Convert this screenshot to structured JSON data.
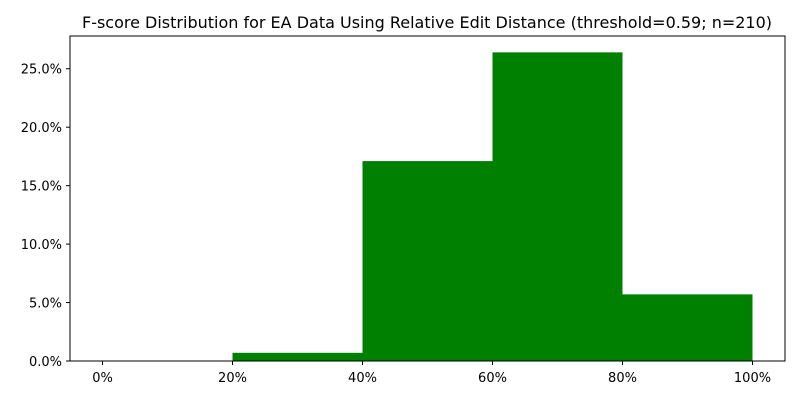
{
  "chart_data": {
    "type": "bar",
    "title": "F-score Distribution for EA Data Using Relative Edit Distance (threshold=0.59; n=210)",
    "xlabel": "",
    "ylabel": "",
    "bin_edges": [
      0,
      20,
      40,
      60,
      80,
      100
    ],
    "values": [
      0.0,
      0.7,
      17.1,
      26.4,
      5.7
    ],
    "xlim": [
      -5,
      105
    ],
    "ylim": [
      0,
      27.8
    ],
    "x_ticks": [
      0,
      20,
      40,
      60,
      80,
      100
    ],
    "x_tick_labels": [
      "0%",
      "20%",
      "40%",
      "60%",
      "80%",
      "100%"
    ],
    "y_ticks": [
      0,
      5,
      10,
      15,
      20,
      25
    ],
    "y_tick_labels": [
      "0.0%",
      "5.0%",
      "10.0%",
      "15.0%",
      "20.0%",
      "25.0%"
    ],
    "bar_color": "#008000",
    "grid": false,
    "legend": "none"
  }
}
